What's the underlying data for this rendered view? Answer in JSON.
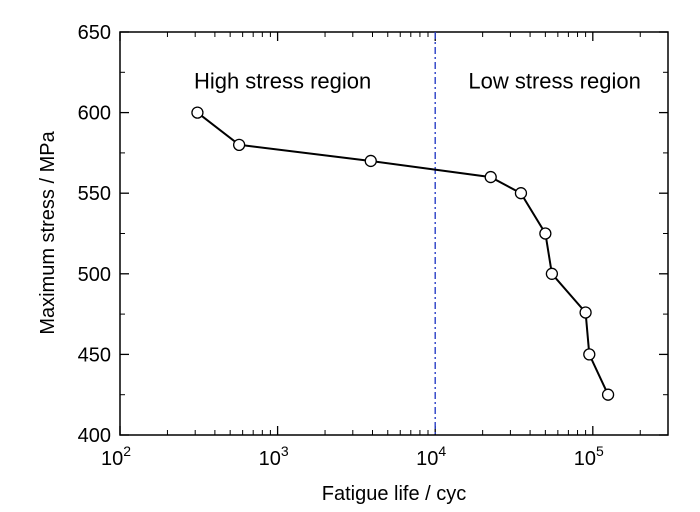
{
  "chart_data": {
    "type": "line",
    "title": "",
    "xlabel": "Fatigue life / cyc",
    "ylabel": "Maximum stress / MPa",
    "xscale": "log",
    "xlim": [
      100,
      300000
    ],
    "ylim": [
      400,
      650
    ],
    "grid": false,
    "legend": "none",
    "x_ticks": [
      {
        "value": 100,
        "base": "10",
        "exp": "2"
      },
      {
        "value": 1000,
        "base": "10",
        "exp": "3"
      },
      {
        "value": 10000,
        "base": "10",
        "exp": "4"
      },
      {
        "value": 100000,
        "base": "10",
        "exp": "5"
      }
    ],
    "y_ticks": [
      {
        "value": 400,
        "label": "400"
      },
      {
        "value": 450,
        "label": "450"
      },
      {
        "value": 500,
        "label": "500"
      },
      {
        "value": 550,
        "label": "550"
      },
      {
        "value": 600,
        "label": "600"
      },
      {
        "value": 650,
        "label": "650"
      }
    ],
    "series": [
      {
        "name": "",
        "color": "#000000",
        "marker": "open-circle",
        "points": [
          {
            "x": 310,
            "y": 600
          },
          {
            "x": 570,
            "y": 580
          },
          {
            "x": 3900,
            "y": 570
          },
          {
            "x": 22500,
            "y": 560
          },
          {
            "x": 35000,
            "y": 550
          },
          {
            "x": 50000,
            "y": 525
          },
          {
            "x": 55000,
            "y": 500
          },
          {
            "x": 90000,
            "y": 476
          },
          {
            "x": 95000,
            "y": 450
          },
          {
            "x": 125000,
            "y": 425
          }
        ]
      }
    ],
    "reference_lines": [
      {
        "orientation": "vertical",
        "x": 10000,
        "style": "dash-dot",
        "color": "#2a3fc6"
      }
    ],
    "annotations": [
      {
        "text": "High stress region",
        "region": "left of boundary"
      },
      {
        "text": "Low stress region",
        "region": "right of boundary"
      }
    ]
  }
}
